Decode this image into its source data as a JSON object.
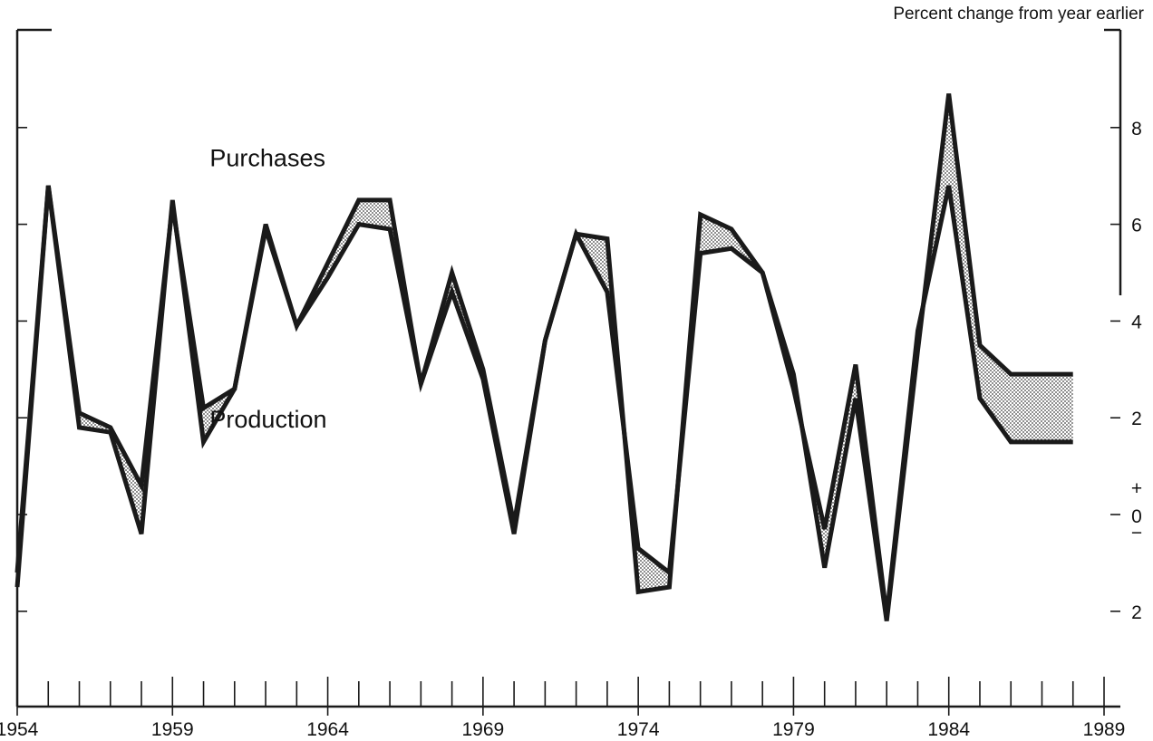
{
  "chart_data": {
    "type": "line",
    "title": "",
    "unit_label": "Percent change from year earlier",
    "xlabel": "",
    "ylabel": "",
    "x_ticks": [
      1954,
      1959,
      1964,
      1969,
      1974,
      1979,
      1984,
      1989
    ],
    "xlim": [
      1954,
      1989
    ],
    "ylim": [
      -4,
      10
    ],
    "y_tick_labels": [
      {
        "value": 8,
        "label": "8"
      },
      {
        "value": 6,
        "label": "6"
      },
      {
        "value": 4,
        "label": "4"
      },
      {
        "value": 2,
        "label": "2"
      },
      {
        "value": -2,
        "label": "2"
      }
    ],
    "zero_marker": {
      "plus": "+",
      "zero": "0",
      "minus": "−"
    },
    "series": [
      {
        "name": "Purchases",
        "x": [
          1954,
          1955,
          1956,
          1957,
          1958,
          1959,
          1960,
          1961,
          1962,
          1963,
          1964,
          1965,
          1966,
          1967,
          1968,
          1969,
          1970,
          1971,
          1972,
          1973,
          1974,
          1975,
          1976,
          1977,
          1978,
          1979,
          1980,
          1981,
          1982,
          1983,
          1984,
          1985,
          1986,
          1987,
          1988
        ],
        "values": [
          -1.2,
          6.8,
          2.1,
          1.8,
          0.6,
          6.4,
          2.2,
          2.6,
          6.0,
          3.9,
          5.2,
          6.5,
          6.5,
          2.7,
          5.0,
          3.0,
          -0.2,
          3.6,
          5.8,
          5.7,
          -1.6,
          -1.5,
          6.2,
          5.9,
          5.0,
          2.9,
          -1.1,
          2.4,
          -2.2,
          3.4,
          8.7,
          3.5,
          2.9,
          2.9,
          2.9
        ]
      },
      {
        "name": "Production",
        "x": [
          1954,
          1955,
          1956,
          1957,
          1958,
          1959,
          1960,
          1961,
          1962,
          1963,
          1964,
          1965,
          1966,
          1967,
          1968,
          1969,
          1970,
          1971,
          1972,
          1973,
          1974,
          1975,
          1976,
          1977,
          1978,
          1979,
          1980,
          1981,
          1982,
          1983,
          1984,
          1985,
          1986,
          1987,
          1988
        ],
        "values": [
          -1.5,
          6.8,
          1.8,
          1.7,
          -0.4,
          6.5,
          1.5,
          2.6,
          5.9,
          3.9,
          4.9,
          6.0,
          5.9,
          2.7,
          4.6,
          2.8,
          -0.4,
          3.6,
          5.8,
          4.6,
          -0.7,
          -1.2,
          5.4,
          5.5,
          5.0,
          2.6,
          -0.3,
          3.1,
          -2.1,
          3.8,
          6.8,
          2.4,
          1.5,
          1.5,
          1.5
        ]
      }
    ],
    "forecast_band": {
      "from": 1986,
      "to": 1988,
      "low": 1.5,
      "high": 2.9
    },
    "annotations": [
      {
        "text": "Purchases",
        "x": 1960.2,
        "y": 7.2
      },
      {
        "text": "Production",
        "x": 1960.2,
        "y": 1.8
      }
    ],
    "grid": false,
    "legend": "none"
  }
}
